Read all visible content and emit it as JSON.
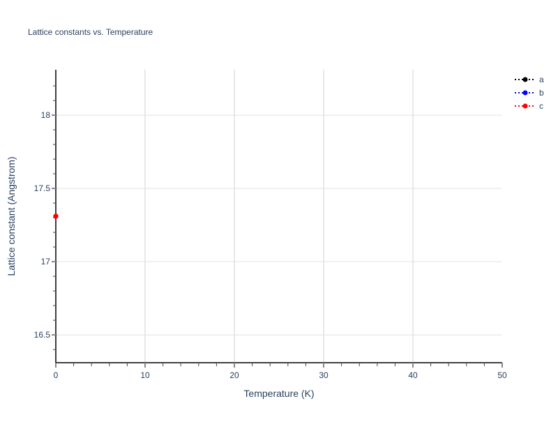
{
  "chart_data": {
    "type": "line",
    "title": "Lattice constants vs. Temperature",
    "xlabel": "Temperature (K)",
    "ylabel": "Lattice constant (Angstrom)",
    "xlim": [
      0,
      50
    ],
    "ylim": [
      16.31,
      18.31
    ],
    "xticks": [
      0,
      10,
      20,
      30,
      40,
      50
    ],
    "yticks": [
      16.5,
      17,
      17.5,
      18
    ],
    "ytick_labels": [
      "16.5",
      "17",
      "17.5",
      "18"
    ],
    "grid": true,
    "legend_position": "top-right",
    "series": [
      {
        "name": "a",
        "color": "#000000",
        "line": "dotted",
        "x": [
          0
        ],
        "y": [
          17.31
        ]
      },
      {
        "name": "b",
        "color": "#0000ff",
        "line": "dotted",
        "x": [
          0
        ],
        "y": [
          17.31
        ]
      },
      {
        "name": "c",
        "color": "#ff0000",
        "line": "dotted",
        "x": [
          0
        ],
        "y": [
          17.31
        ]
      }
    ]
  }
}
